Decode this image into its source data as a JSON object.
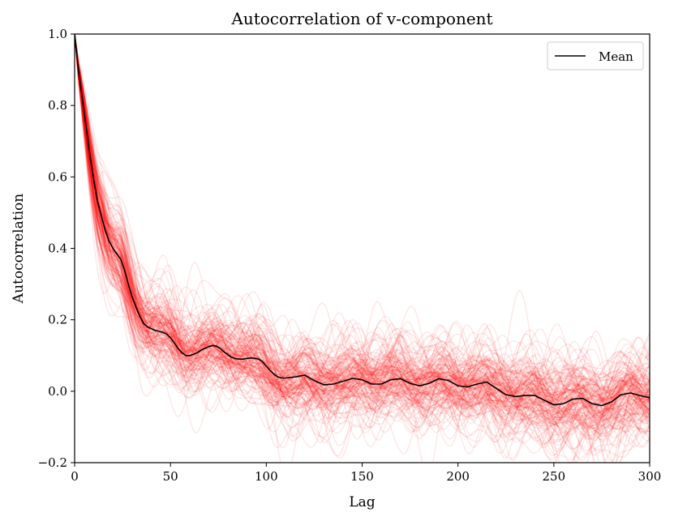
{
  "chart_data": {
    "type": "line",
    "title": "Autocorrelation of v-component",
    "xlabel": "Lag",
    "ylabel": "Autocorrelation",
    "xlim": [
      0,
      300
    ],
    "ylim": [
      -0.2,
      1.0
    ],
    "xticks": [
      0,
      50,
      100,
      150,
      200,
      250,
      300
    ],
    "xtick_labels": [
      "0",
      "50",
      "100",
      "150",
      "200",
      "250",
      "300"
    ],
    "yticks": [
      -0.2,
      0.0,
      0.2,
      0.4,
      0.6,
      0.8,
      1.0
    ],
    "ytick_labels": [
      "−0.2",
      "0.0",
      "0.2",
      "0.4",
      "0.6",
      "0.8",
      "1.0"
    ],
    "grid": false,
    "legend": {
      "placement": "top-right",
      "entries": [
        "Mean"
      ]
    },
    "series": [
      {
        "name": "Mean",
        "color": "#000000",
        "x": [
          0,
          2,
          4,
          6,
          8,
          10,
          12,
          14,
          16,
          18,
          20,
          22,
          24,
          26,
          28,
          30,
          32,
          34,
          36,
          38,
          40,
          42,
          44,
          46,
          48,
          50,
          52,
          54,
          56,
          58,
          60,
          62,
          64,
          66,
          68,
          70,
          72,
          74,
          76,
          78,
          80,
          82,
          84,
          86,
          88,
          90,
          92,
          94,
          96,
          98,
          100,
          102,
          104,
          106,
          108,
          110,
          115,
          120,
          125,
          130,
          135,
          140,
          145,
          150,
          155,
          160,
          165,
          170,
          175,
          180,
          185,
          190,
          195,
          200,
          205,
          210,
          215,
          220,
          225,
          230,
          235,
          240,
          245,
          250,
          255,
          260,
          265,
          270,
          275,
          280,
          285,
          290,
          295,
          300
        ],
        "y": [
          1.0,
          0.9,
          0.82,
          0.74,
          0.66,
          0.59,
          0.53,
          0.49,
          0.45,
          0.42,
          0.4,
          0.385,
          0.37,
          0.34,
          0.3,
          0.265,
          0.235,
          0.21,
          0.19,
          0.18,
          0.175,
          0.17,
          0.168,
          0.165,
          0.16,
          0.15,
          0.135,
          0.12,
          0.108,
          0.1,
          0.1,
          0.103,
          0.108,
          0.115,
          0.12,
          0.125,
          0.128,
          0.126,
          0.12,
          0.11,
          0.102,
          0.095,
          0.091,
          0.09,
          0.09,
          0.092,
          0.093,
          0.092,
          0.09,
          0.083,
          0.07,
          0.058,
          0.048,
          0.04,
          0.037,
          0.037,
          0.04,
          0.045,
          0.03,
          0.018,
          0.02,
          0.028,
          0.036,
          0.032,
          0.02,
          0.02,
          0.032,
          0.035,
          0.022,
          0.015,
          0.022,
          0.035,
          0.03,
          0.015,
          0.012,
          0.02,
          0.026,
          0.008,
          -0.01,
          -0.015,
          -0.012,
          -0.012,
          -0.025,
          -0.038,
          -0.035,
          -0.022,
          -0.02,
          -0.035,
          -0.04,
          -0.03,
          -0.01,
          -0.005,
          -0.012,
          -0.018
        ]
      }
    ],
    "ensemble": {
      "color": "#ff0000",
      "opacity": 0.1,
      "note_count": 160
    }
  }
}
